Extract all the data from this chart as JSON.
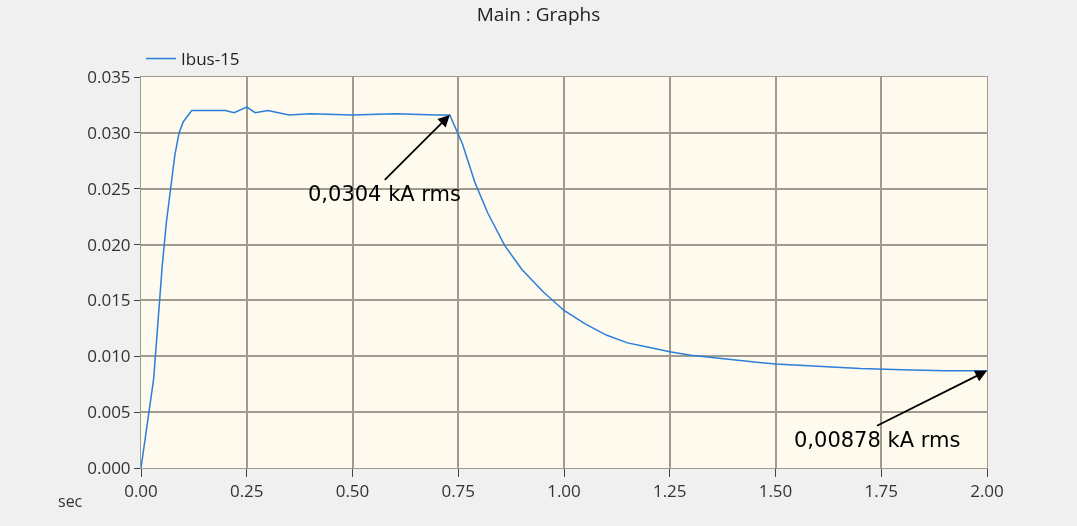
{
  "chart_data": {
    "type": "line",
    "title": "Main : Graphs",
    "xlabel": "sec",
    "x": [
      0,
      0.03,
      0.05,
      0.06,
      0.07,
      0.08,
      0.09,
      0.1,
      0.12,
      0.2,
      0.22,
      0.25,
      0.27,
      0.3,
      0.35,
      0.4,
      0.5,
      0.6,
      0.7,
      0.73,
      0.76,
      0.79,
      0.82,
      0.86,
      0.9,
      0.95,
      1.0,
      1.05,
      1.1,
      1.15,
      1.2,
      1.25,
      1.3,
      1.4,
      1.5,
      1.6,
      1.7,
      1.8,
      1.9,
      2.0
    ],
    "series": [
      {
        "name": "Ibus-15",
        "color": "#2a7fd8",
        "values": [
          0,
          0.008,
          0.018,
          0.022,
          0.025,
          0.028,
          0.03,
          0.031,
          0.032,
          0.032,
          0.0318,
          0.0323,
          0.0318,
          0.032,
          0.0316,
          0.0317,
          0.0316,
          0.0317,
          0.0316,
          0.0316,
          0.029,
          0.0255,
          0.0228,
          0.0199,
          0.0178,
          0.0158,
          0.0141,
          0.0129,
          0.0119,
          0.0112,
          0.0108,
          0.0104,
          0.0101,
          0.0097,
          0.0093,
          0.0091,
          0.0089,
          0.0088,
          0.0087,
          0.0087
        ]
      }
    ],
    "xlim": [
      0,
      2
    ],
    "ylim": [
      0,
      0.035
    ],
    "xticks": [
      {
        "value": 0,
        "label": "0.00"
      },
      {
        "value": 0.25,
        "label": "0.25"
      },
      {
        "value": 0.5,
        "label": "0.50"
      },
      {
        "value": 0.75,
        "label": "0.75"
      },
      {
        "value": 1,
        "label": "1.00"
      },
      {
        "value": 1.25,
        "label": "1.25"
      },
      {
        "value": 1.5,
        "label": "1.50"
      },
      {
        "value": 1.75,
        "label": "1.75"
      },
      {
        "value": 2,
        "label": "2.00"
      }
    ],
    "yticks": [
      {
        "value": 0,
        "label": "0.000"
      },
      {
        "value": 0.005,
        "label": "0.005"
      },
      {
        "value": 0.01,
        "label": "0.010"
      },
      {
        "value": 0.015,
        "label": "0.015"
      },
      {
        "value": 0.02,
        "label": "0.020"
      },
      {
        "value": 0.025,
        "label": "0.025"
      },
      {
        "value": 0.03,
        "label": "0.030"
      },
      {
        "value": 0.035,
        "label": "0.035"
      }
    ],
    "annotations": [
      {
        "text": "0,0304 kA rms",
        "x": 0.73,
        "y": 0.0316
      },
      {
        "text": "0,00878 kA rms",
        "x": 2.0,
        "y": 0.0087
      }
    ],
    "grid": true,
    "legend": "top left",
    "marker": "none",
    "line_style": "solid"
  }
}
